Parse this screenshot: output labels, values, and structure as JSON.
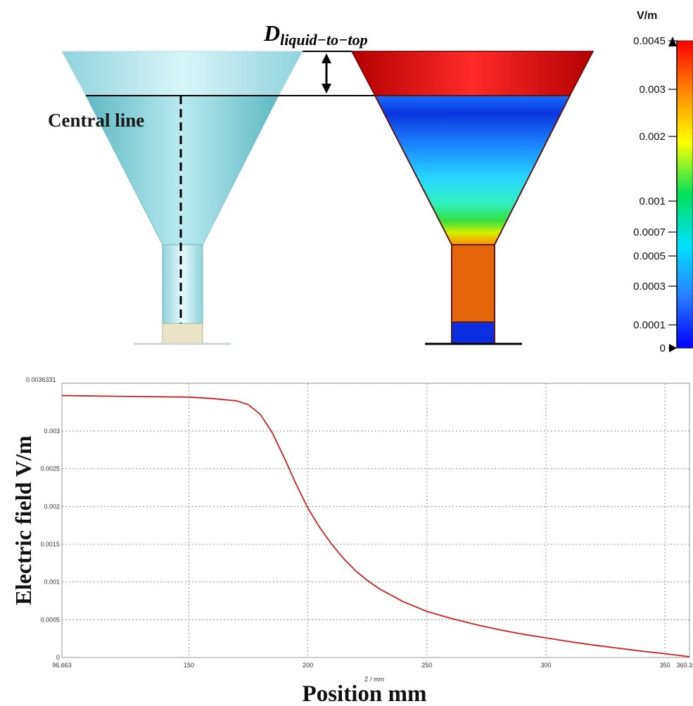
{
  "top": {
    "dimension_label_main": "D",
    "dimension_label_sub": "liquid−to−top",
    "central_line_label": "Central line"
  },
  "colorbar": {
    "unit": "V/m",
    "ticks": [
      {
        "value": 0.0045,
        "label": "0.0045"
      },
      {
        "value": 0.003,
        "label": "0.003"
      },
      {
        "value": 0.002,
        "label": "0.002"
      },
      {
        "value": 0.001,
        "label": "0.001"
      },
      {
        "value": 0.0007,
        "label": "0.0007"
      },
      {
        "value": 0.0005,
        "label": "0.0005"
      },
      {
        "value": 0.0003,
        "label": "0.0003"
      },
      {
        "value": 0.0001,
        "label": "0.0001"
      },
      {
        "value": 0,
        "label": "0"
      }
    ],
    "colors": [
      "#ff0000",
      "#ff8c00",
      "#ffff00",
      "#00e05a",
      "#00e0ff",
      "#2a7fff",
      "#0000ff"
    ]
  },
  "chart_data": {
    "type": "line",
    "xlabel": "Position mm",
    "xunit_small": "Z / mm",
    "ylabel": "Electric field V/m",
    "xlim": [
      96.663,
      360.3
    ],
    "ylim": [
      0,
      0.0036331
    ],
    "xticks": [
      {
        "value": 96.663,
        "label": "96.663"
      },
      {
        "value": 150,
        "label": "150"
      },
      {
        "value": 200,
        "label": "200"
      },
      {
        "value": 250,
        "label": "250"
      },
      {
        "value": 300,
        "label": "300"
      },
      {
        "value": 350,
        "label": "350"
      },
      {
        "value": 360.3,
        "label": "360.3"
      }
    ],
    "yticks": [
      {
        "value": 0,
        "label": "0"
      },
      {
        "value": 0.0005,
        "label": "0.0005"
      },
      {
        "value": 0.001,
        "label": "0.001"
      },
      {
        "value": 0.0015,
        "label": "0.0015"
      },
      {
        "value": 0.002,
        "label": "0.002"
      },
      {
        "value": 0.0025,
        "label": "0.0025"
      },
      {
        "value": 0.003,
        "label": "0.003"
      },
      {
        "value": 0.0036331,
        "label": "0.0036331"
      }
    ],
    "grid": true,
    "series": [
      {
        "color": "#cc2222",
        "x": [
          96.663,
          120,
          150,
          160,
          170,
          175,
          180,
          185,
          190,
          195,
          200,
          205,
          210,
          215,
          220,
          225,
          230,
          240,
          250,
          260,
          270,
          280,
          290,
          300,
          310,
          320,
          330,
          340,
          350,
          360.3
        ],
        "y": [
          0.00347,
          0.00346,
          0.00345,
          0.00343,
          0.0034,
          0.00335,
          0.00322,
          0.00298,
          0.00265,
          0.0023,
          0.00198,
          0.00172,
          0.0015,
          0.00131,
          0.00115,
          0.00102,
          0.00091,
          0.00074,
          0.00061,
          0.00052,
          0.00044,
          0.00037,
          0.00031,
          0.00026,
          0.00021,
          0.000165,
          0.000125,
          8.5e-05,
          5e-05,
          1e-05
        ]
      }
    ]
  }
}
